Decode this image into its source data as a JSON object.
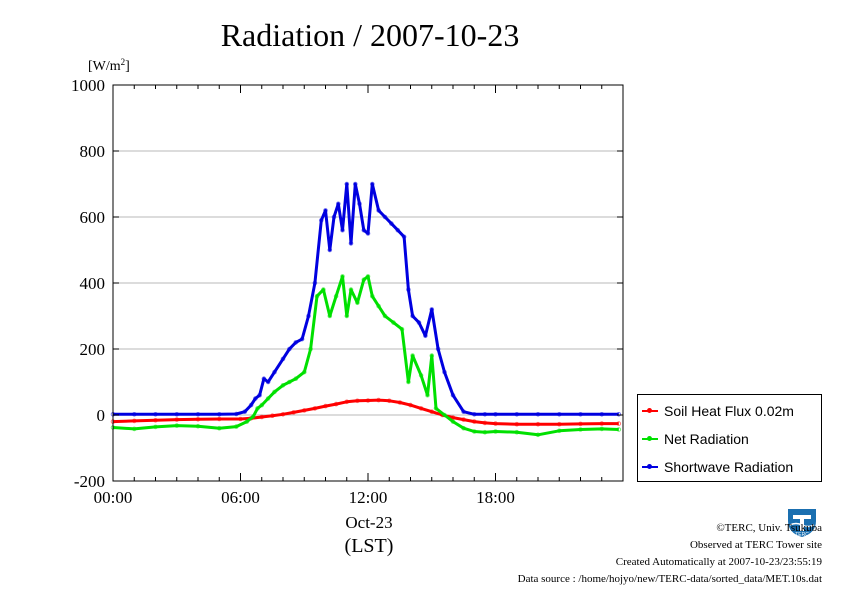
{
  "chart_data": {
    "type": "line",
    "title": "Radiation / 2007-10-23",
    "ylabel": "[W/m",
    "ylabel_sup": "2",
    "ylabel_close": "]",
    "xlabel": "(LST)",
    "date_label": "Oct-23",
    "ylim": [
      -200,
      1000
    ],
    "xlim": [
      0,
      24
    ],
    "yticks": [
      -200,
      0,
      200,
      400,
      600,
      800,
      1000
    ],
    "xticks": [
      {
        "x": 0,
        "label": "00:00"
      },
      {
        "x": 6,
        "label": "06:00"
      },
      {
        "x": 12,
        "label": "12:00"
      },
      {
        "x": 18,
        "label": "18:00"
      }
    ],
    "grid": true,
    "legend_position": "outside right, lower",
    "series": [
      {
        "name": "Soil Heat Flux 0.02m",
        "color": "#ff0000",
        "x": [
          0,
          1,
          2,
          3,
          4,
          5,
          6,
          6.5,
          7,
          7.5,
          8,
          8.5,
          9,
          9.5,
          10,
          10.5,
          11,
          11.5,
          12,
          12.5,
          13,
          13.5,
          14,
          14.5,
          15,
          15.5,
          16,
          16.5,
          17,
          17.5,
          18,
          19,
          20,
          21,
          22,
          23,
          23.8
        ],
        "y": [
          -20,
          -18,
          -16,
          -14,
          -13,
          -12,
          -12,
          -10,
          -6,
          -2,
          2,
          8,
          14,
          20,
          27,
          33,
          40,
          43,
          44,
          45,
          43,
          38,
          30,
          20,
          10,
          0,
          -8,
          -14,
          -20,
          -24,
          -26,
          -28,
          -28,
          -28,
          -27,
          -26,
          -26
        ]
      },
      {
        "name": "Net Radiation",
        "color": "#00e000",
        "x": [
          0,
          1,
          2,
          3,
          4,
          5,
          5.8,
          6.3,
          6.6,
          6.8,
          7.0,
          7.3,
          7.6,
          8.0,
          8.3,
          8.6,
          9.0,
          9.3,
          9.6,
          9.9,
          10.2,
          10.5,
          10.8,
          11.0,
          11.2,
          11.5,
          11.8,
          12.0,
          12.2,
          12.5,
          12.8,
          13.2,
          13.6,
          13.9,
          14.1,
          14.5,
          14.8,
          15.0,
          15.2,
          15.6,
          16.0,
          16.5,
          17.0,
          17.5,
          18.0,
          19.0,
          20.0,
          21.0,
          22.0,
          23.0,
          23.8
        ],
        "y": [
          -38,
          -42,
          -36,
          -32,
          -34,
          -40,
          -35,
          -20,
          -5,
          20,
          30,
          50,
          70,
          90,
          100,
          110,
          130,
          200,
          360,
          380,
          300,
          360,
          420,
          300,
          380,
          340,
          410,
          420,
          360,
          330,
          300,
          280,
          260,
          100,
          180,
          120,
          60,
          180,
          20,
          0,
          -20,
          -40,
          -50,
          -52,
          -50,
          -52,
          -60,
          -48,
          -44,
          -42,
          -44
        ]
      },
      {
        "name": "Shortwave Radiation",
        "color": "#0000e0",
        "x": [
          0,
          1,
          2,
          3,
          4,
          5,
          5.8,
          6.2,
          6.5,
          6.7,
          6.9,
          7.1,
          7.3,
          7.6,
          8.0,
          8.3,
          8.6,
          8.9,
          9.2,
          9.5,
          9.8,
          10.0,
          10.2,
          10.4,
          10.6,
          10.8,
          11.0,
          11.2,
          11.4,
          11.6,
          11.8,
          12.0,
          12.2,
          12.5,
          12.8,
          13.1,
          13.4,
          13.7,
          13.9,
          14.1,
          14.4,
          14.7,
          15.0,
          15.3,
          15.6,
          16.0,
          16.5,
          17.0,
          17.5,
          18.0,
          19.0,
          20.0,
          21.0,
          22.0,
          23.0,
          23.8
        ],
        "y": [
          2,
          2,
          2,
          2,
          2,
          2,
          3,
          10,
          30,
          50,
          60,
          110,
          100,
          130,
          170,
          200,
          220,
          230,
          300,
          400,
          590,
          620,
          500,
          600,
          640,
          560,
          700,
          520,
          700,
          640,
          560,
          550,
          700,
          620,
          600,
          580,
          560,
          540,
          380,
          300,
          280,
          240,
          320,
          200,
          130,
          60,
          10,
          2,
          2,
          2,
          2,
          2,
          2,
          2,
          2,
          2
        ]
      }
    ]
  },
  "footer": {
    "line1": "©TERC, Univ. Tsukuba",
    "line2": "Observed at TERC Tower site",
    "line3": "Created Automatically at 2007-10-23/23:55:19",
    "line4": "Data source : /home/hojyo/new/TERC-data/sorted_data/MET.10s.dat"
  },
  "logo": {
    "icon": "terc-logo-icon",
    "text": "TERC",
    "color": "#1a6fb0"
  }
}
